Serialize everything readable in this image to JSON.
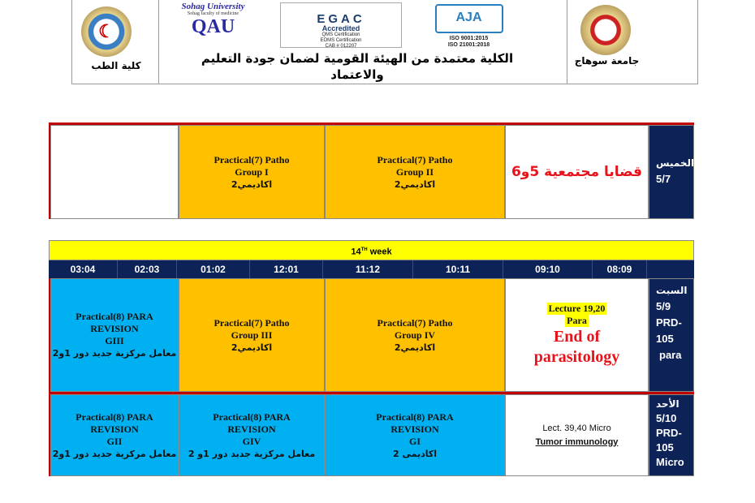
{
  "header": {
    "faculty_label": "كلية الطب",
    "university_label": "جامعة سوهاج",
    "title": "الكلية معتمدة من الهيئة القومية لضمان جودة التعليم والاعتماد",
    "qau_logo": {
      "top": "Sohag University",
      "sub": "Sohag faculty of medicine",
      "main": "QAU"
    },
    "egac_logo": {
      "main": "EGAC",
      "sub": "Accredited",
      "lines": [
        "QMS Certification",
        "EOMS Certification",
        "CAB # 012207"
      ]
    },
    "aja_logo": {
      "main": "AJA",
      "lines": [
        "ISO 9001:2015",
        "ISO 21001:2018"
      ]
    }
  },
  "thursday": {
    "day": "الخميس",
    "date": "5/7",
    "c1": "قضايا مجتمعية 5و6",
    "c2": [
      "Practical(7) Patho",
      "Group II",
      "اكاديمي2"
    ],
    "c3": [
      "Practical(7) Patho",
      "Group I",
      "اكاديمي2"
    ]
  },
  "week": {
    "label": "14",
    "sup": "TH",
    "suffix": " week"
  },
  "times": [
    "08:09",
    "09:10",
    "10:11",
    "11:12",
    "12:01",
    "01:02",
    "02:03",
    "03:04"
  ],
  "saturday": {
    "day": "السبت",
    "date": "5/9",
    "room1": "PRD-",
    "room2": "105",
    "subject": "para",
    "lecture": "Lecture 19,20",
    "lecture2": "Para",
    "highlight": "End of parasitology",
    "c2": [
      "Practical(7) Patho",
      "Group IV",
      "اكاديمي2"
    ],
    "c3": [
      "Practical(7) Patho",
      "Group III",
      "اكاديمي2"
    ],
    "c4": [
      "Practical(8) PARA",
      "REVISION",
      "GIII",
      "معامل مركزية جديد دور 1و2"
    ]
  },
  "sunday": {
    "day": "الأحد",
    "date": "5/10",
    "room1": "PRD-",
    "room2": "105",
    "subject": "Micro",
    "lecture": "Lect. 39,40 Micro",
    "topic": "Tumor immunology",
    "c2": [
      "Practical(8) PARA",
      "REVISION",
      "GI",
      "اكاديمى 2"
    ],
    "c3": [
      "Practical(8) PARA",
      "REVISION",
      "GIV",
      "معامل مركزية جديد دور 1و 2"
    ],
    "c4": [
      "Practical(8) PARA",
      "REVISION",
      "GII",
      "معامل مركزية جديد دور 1و2"
    ]
  },
  "colors": {
    "navy": "#0d2357",
    "orange": "#ffc000",
    "cyan": "#00b0f0",
    "yellow": "#ffff00",
    "red": "#e8121b",
    "border_red": "#c00000"
  }
}
